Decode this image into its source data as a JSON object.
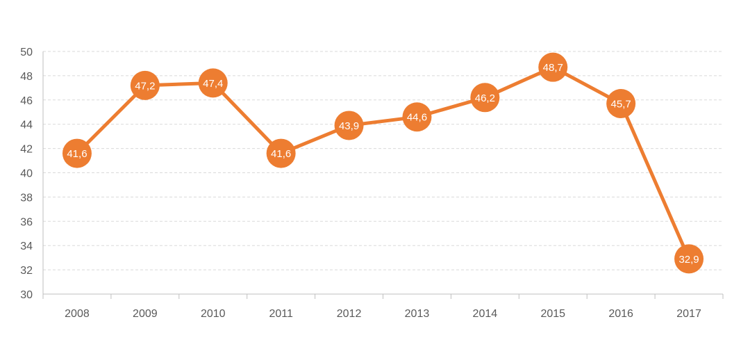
{
  "chart_data": {
    "type": "line",
    "title": "",
    "xlabel": "",
    "ylabel": "",
    "categories": [
      "2008",
      "2009",
      "2010",
      "2011",
      "2012",
      "2013",
      "2014",
      "2015",
      "2016",
      "2017"
    ],
    "series": [
      {
        "values": [
          41.6,
          47.2,
          47.4,
          41.6,
          43.9,
          44.6,
          46.2,
          48.7,
          45.7,
          32.9
        ],
        "labels": [
          "41,6",
          "47,2",
          "47,4",
          "41,6",
          "43,9",
          "44,6",
          "46,2",
          "48,7",
          "45,7",
          "32,9"
        ]
      }
    ],
    "ylim": [
      30,
      50
    ],
    "yticks": [
      30,
      32,
      34,
      36,
      38,
      40,
      42,
      44,
      46,
      48,
      50
    ],
    "grid": true,
    "legend": "none",
    "colors": {
      "line": "#ED7D31",
      "grid": "#D9D9D9",
      "axis": "#BFBFBF",
      "text": "#595959"
    }
  }
}
